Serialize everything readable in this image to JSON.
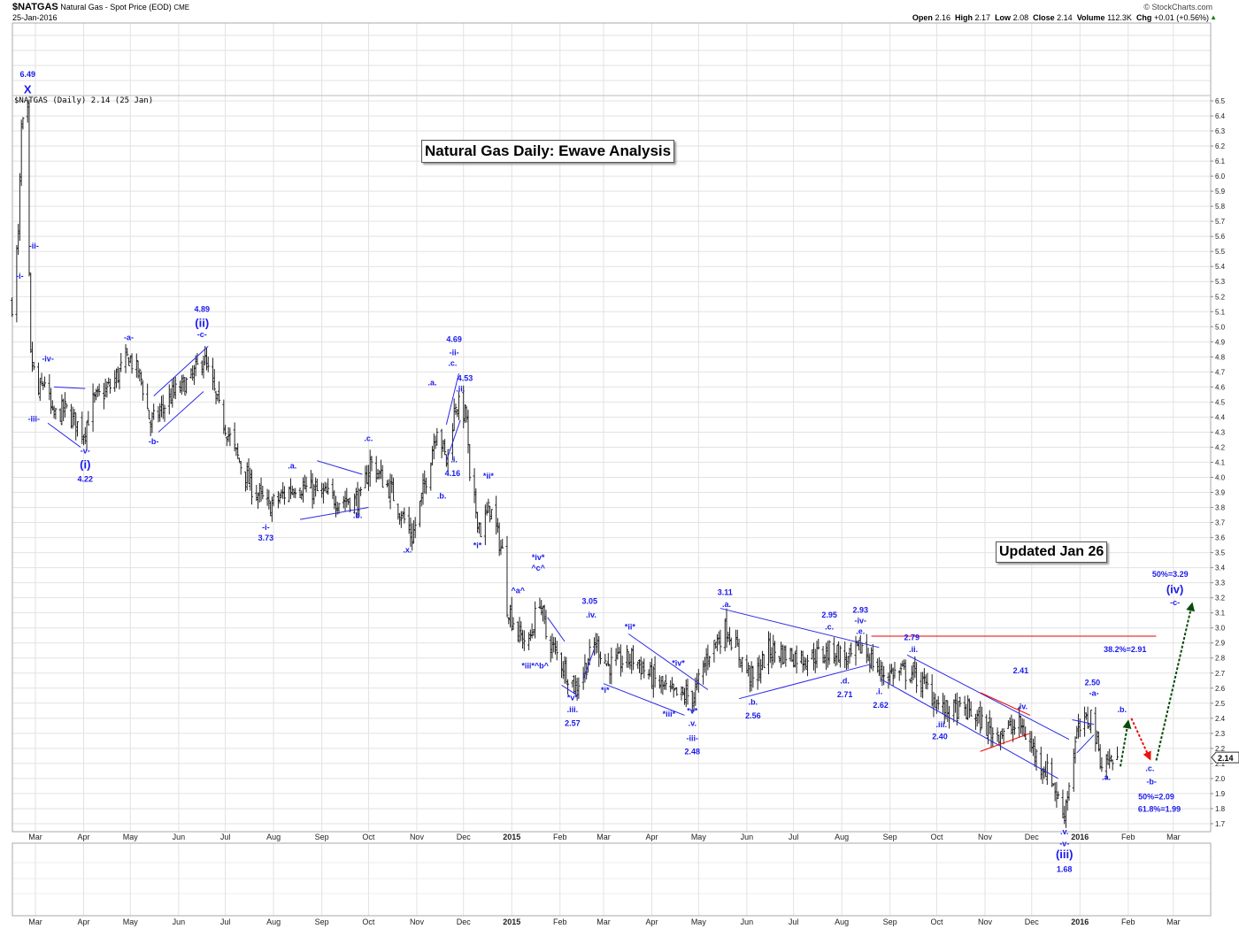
{
  "header": {
    "symbol": "$NATGAS",
    "description": "Natural Gas - Spot Price (EOD)",
    "exchange": "CME",
    "date": "25-Jan-2016",
    "copyright": "© StockCharts.com",
    "quote": {
      "open_label": "Open",
      "open": "2.16",
      "high_label": "High",
      "high": "2.17",
      "low_label": "Low",
      "low": "2.08",
      "close_label": "Close",
      "close": "2.14",
      "volume_label": "Volume",
      "volume": "112.3K",
      "chg_label": "Chg",
      "chg": "+0.01 (+0.56%)"
    },
    "chg_icon": "up-triangle-icon",
    "legend": "$NATGAS (Daily) 2.14 (25 Jan)"
  },
  "annotations": {
    "title_box": "Natural Gas Daily: Ewave Analysis",
    "updated_box": "Updated Jan 26"
  },
  "colors": {
    "bars": "#222222",
    "wave_labels": "#1a1aee",
    "trendlines": "#2a2ae8",
    "resistance": "#ee0000",
    "arrow_up": "#0a4a0a",
    "arrow_down": "#ee1111",
    "grid": "#e2e2e2"
  },
  "chart_data": {
    "type": "ohlc-bar",
    "ylim": [
      1.7,
      6.5
    ],
    "y_ticks": [
      "6.5",
      "6.4",
      "6.3",
      "6.2",
      "6.1",
      "6.0",
      "5.9",
      "5.8",
      "5.7",
      "5.6",
      "5.5",
      "5.4",
      "5.3",
      "5.2",
      "5.1",
      "5.0",
      "4.9",
      "4.8",
      "4.7",
      "4.6",
      "4.5",
      "4.4",
      "4.3",
      "4.2",
      "4.1",
      "4.0",
      "3.9",
      "3.8",
      "3.7",
      "3.6",
      "3.5",
      "3.4",
      "3.3",
      "3.2",
      "3.1",
      "3.0",
      "2.9",
      "2.8",
      "2.7",
      "2.6",
      "2.5",
      "2.4",
      "2.3",
      "2.2",
      "2.1",
      "2.0",
      "1.9",
      "1.8",
      "1.7"
    ],
    "x_ticks": [
      {
        "label": "Mar",
        "date": "2014-03-01"
      },
      {
        "label": "Apr",
        "date": "2014-04-01"
      },
      {
        "label": "May",
        "date": "2014-05-01"
      },
      {
        "label": "Jun",
        "date": "2014-06-01"
      },
      {
        "label": "Jul",
        "date": "2014-07-01"
      },
      {
        "label": "Aug",
        "date": "2014-08-01"
      },
      {
        "label": "Sep",
        "date": "2014-09-01"
      },
      {
        "label": "Oct",
        "date": "2014-10-01"
      },
      {
        "label": "Nov",
        "date": "2014-11-01"
      },
      {
        "label": "Dec",
        "date": "2014-12-01"
      },
      {
        "label": "2015",
        "date": "2015-01-01",
        "bold": true
      },
      {
        "label": "Feb",
        "date": "2015-02-01"
      },
      {
        "label": "Mar",
        "date": "2015-03-01"
      },
      {
        "label": "Apr",
        "date": "2015-04-01"
      },
      {
        "label": "May",
        "date": "2015-05-01"
      },
      {
        "label": "Jun",
        "date": "2015-06-01"
      },
      {
        "label": "Jul",
        "date": "2015-07-01"
      },
      {
        "label": "Aug",
        "date": "2015-08-01"
      },
      {
        "label": "Sep",
        "date": "2015-09-01"
      },
      {
        "label": "Oct",
        "date": "2015-10-01"
      },
      {
        "label": "Nov",
        "date": "2015-11-01"
      },
      {
        "label": "Dec",
        "date": "2015-12-01"
      },
      {
        "label": "2016",
        "date": "2016-01-01",
        "bold": true
      },
      {
        "label": "Feb",
        "date": "2016-02-01"
      },
      {
        "label": "Mar",
        "date": "2016-03-01"
      }
    ],
    "last_price": "2.14",
    "close_path": [
      [
        "2014-02-14",
        5.15
      ],
      [
        "2014-02-18",
        5.6
      ],
      [
        "2014-02-20",
        6.3
      ],
      [
        "2014-02-24",
        6.4
      ],
      [
        "2014-02-25",
        5.3
      ],
      [
        "2014-02-26",
        4.8
      ],
      [
        "2014-03-03",
        4.55
      ],
      [
        "2014-03-07",
        4.65
      ],
      [
        "2014-03-12",
        4.4
      ],
      [
        "2014-03-20",
        4.45
      ],
      [
        "2014-04-01",
        4.3
      ],
      [
        "2014-04-07",
        4.5
      ],
      [
        "2014-04-18",
        4.6
      ],
      [
        "2014-04-30",
        4.8
      ],
      [
        "2014-05-08",
        4.65
      ],
      [
        "2014-05-14",
        4.35
      ],
      [
        "2014-05-28",
        4.55
      ],
      [
        "2014-06-09",
        4.65
      ],
      [
        "2014-06-17",
        4.8
      ],
      [
        "2014-06-27",
        4.45
      ],
      [
        "2014-07-08",
        4.15
      ],
      [
        "2014-07-17",
        3.95
      ],
      [
        "2014-07-29",
        3.8
      ],
      [
        "2014-08-15",
        3.95
      ],
      [
        "2014-08-29",
        3.9
      ],
      [
        "2014-09-12",
        3.85
      ],
      [
        "2014-09-26",
        3.85
      ],
      [
        "2014-10-02",
        4.1
      ],
      [
        "2014-10-16",
        3.9
      ],
      [
        "2014-10-29",
        3.6
      ],
      [
        "2014-11-05",
        3.9
      ],
      [
        "2014-11-14",
        4.35
      ],
      [
        "2014-11-20",
        4.1
      ],
      [
        "2014-11-26",
        4.5
      ],
      [
        "2014-12-03",
        4.4
      ],
      [
        "2014-12-05",
        3.95
      ],
      [
        "2014-12-12",
        3.65
      ],
      [
        "2014-12-18",
        3.8
      ],
      [
        "2014-12-26",
        3.5
      ],
      [
        "2014-12-29",
        3.15
      ],
      [
        "2015-01-06",
        2.95
      ],
      [
        "2015-01-12",
        2.9
      ],
      [
        "2015-01-19",
        3.2
      ],
      [
        "2015-01-23",
        2.95
      ],
      [
        "2015-02-03",
        2.75
      ],
      [
        "2015-02-11",
        2.6
      ],
      [
        "2015-02-24",
        2.9
      ],
      [
        "2015-03-04",
        2.75
      ],
      [
        "2015-03-20",
        2.8
      ],
      [
        "2015-04-03",
        2.65
      ],
      [
        "2015-04-14",
        2.55
      ],
      [
        "2015-04-28",
        2.55
      ],
      [
        "2015-05-08",
        2.85
      ],
      [
        "2015-05-19",
        3.0
      ],
      [
        "2015-05-28",
        2.8
      ],
      [
        "2015-06-05",
        2.65
      ],
      [
        "2015-06-15",
        2.85
      ],
      [
        "2015-07-08",
        2.8
      ],
      [
        "2015-07-28",
        2.85
      ],
      [
        "2015-08-05",
        2.78
      ],
      [
        "2015-08-14",
        2.88
      ],
      [
        "2015-08-26",
        2.7
      ],
      [
        "2015-09-15",
        2.7
      ],
      [
        "2015-09-25",
        2.6
      ],
      [
        "2015-10-05",
        2.45
      ],
      [
        "2015-10-22",
        2.45
      ],
      [
        "2015-11-06",
        2.3
      ],
      [
        "2015-11-24",
        2.35
      ],
      [
        "2015-12-04",
        2.15
      ],
      [
        "2015-12-14",
        2.0
      ],
      [
        "2015-12-21",
        1.75
      ],
      [
        "2015-12-24",
        1.9
      ],
      [
        "2015-12-30",
        2.3
      ],
      [
        "2016-01-08",
        2.42
      ],
      [
        "2016-01-15",
        2.1
      ],
      [
        "2016-01-25",
        2.14
      ]
    ],
    "wave_labels": [
      {
        "text": "6.49",
        "date": "2014-02-24",
        "price": 6.66
      },
      {
        "text": "X",
        "date": "2014-02-24",
        "price": 6.55
      },
      {
        "text": "-ii-",
        "date": "2014-02-28",
        "price": 5.52
      },
      {
        "text": "-i-",
        "date": "2014-02-19",
        "price": 5.32
      },
      {
        "text": "-iv-",
        "date": "2014-03-09",
        "price": 4.77
      },
      {
        "text": "-iii-",
        "date": "2014-02-28",
        "price": 4.37
      },
      {
        "text": "-v-",
        "date": "2014-04-02",
        "price": 4.16
      },
      {
        "text": "(i)",
        "date": "2014-04-02",
        "price": 4.06
      },
      {
        "text": "4.22",
        "date": "2014-04-02",
        "price": 3.97
      },
      {
        "text": "-a-",
        "date": "2014-04-30",
        "price": 4.91
      },
      {
        "text": "-b-",
        "date": "2014-05-16",
        "price": 4.22
      },
      {
        "text": "4.89",
        "date": "2014-06-16",
        "price": 5.1
      },
      {
        "text": "(ii)",
        "date": "2014-06-16",
        "price": 5.0
      },
      {
        "text": "-c-",
        "date": "2014-06-16",
        "price": 4.93
      },
      {
        "text": "-i-",
        "date": "2014-07-27",
        "price": 3.65
      },
      {
        "text": "3.73",
        "date": "2014-07-27",
        "price": 3.58
      },
      {
        "text": ".a.",
        "date": "2014-08-13",
        "price": 4.06
      },
      {
        "text": ".b.",
        "date": "2014-09-24",
        "price": 3.73
      },
      {
        "text": ".c.",
        "date": "2014-10-01",
        "price": 4.24
      },
      {
        "text": ".x.",
        "date": "2014-10-26",
        "price": 3.5
      },
      {
        "text": "4.69",
        "date": "2014-11-25",
        "price": 4.9
      },
      {
        "text": "-ii-",
        "date": "2014-11-25",
        "price": 4.81
      },
      {
        "text": ".c.",
        "date": "2014-11-24",
        "price": 4.74
      },
      {
        "text": "4.53",
        "date": "2014-12-02",
        "price": 4.64
      },
      {
        "text": ".ii.",
        "date": "2014-11-29",
        "price": 4.57
      },
      {
        "text": ".i.",
        "date": "2014-11-25",
        "price": 4.1
      },
      {
        "text": "4.16",
        "date": "2014-11-24",
        "price": 4.01
      },
      {
        "text": ".a.",
        "date": "2014-11-11",
        "price": 4.61
      },
      {
        "text": ".b.",
        "date": "2014-11-17",
        "price": 3.86
      },
      {
        "text": "*ii*",
        "date": "2014-12-17",
        "price": 3.99
      },
      {
        "text": "*i*",
        "date": "2014-12-10",
        "price": 3.53
      },
      {
        "text": "*iv*",
        "date": "2015-01-18",
        "price": 3.45
      },
      {
        "text": "^c^",
        "date": "2015-01-18",
        "price": 3.38
      },
      {
        "text": "^a^",
        "date": "2015-01-05",
        "price": 3.23
      },
      {
        "text": "*iii*^b^",
        "date": "2015-01-16",
        "price": 2.73
      },
      {
        "text": "*v*",
        "date": "2015-02-09",
        "price": 2.52
      },
      {
        "text": ".iii.",
        "date": "2015-02-09",
        "price": 2.44
      },
      {
        "text": "2.57",
        "date": "2015-02-09",
        "price": 2.35
      },
      {
        "text": "3.05",
        "date": "2015-02-20",
        "price": 3.16
      },
      {
        "text": ".iv.",
        "date": "2015-02-21",
        "price": 3.07
      },
      {
        "text": "*ii*",
        "date": "2015-03-18",
        "price": 2.99
      },
      {
        "text": "*i*",
        "date": "2015-03-02",
        "price": 2.57
      },
      {
        "text": "*iv*",
        "date": "2015-04-18",
        "price": 2.75
      },
      {
        "text": "*iii*",
        "date": "2015-04-12",
        "price": 2.41
      },
      {
        "text": "*v*",
        "date": "2015-04-27",
        "price": 2.43
      },
      {
        "text": ".v.",
        "date": "2015-04-27",
        "price": 2.35
      },
      {
        "text": "-iii-",
        "date": "2015-04-27",
        "price": 2.25
      },
      {
        "text": "2.48",
        "date": "2015-04-27",
        "price": 2.16
      },
      {
        "text": "3.11",
        "date": "2015-05-18",
        "price": 3.22
      },
      {
        "text": ".a.",
        "date": "2015-05-19",
        "price": 3.14
      },
      {
        "text": ".b.",
        "date": "2015-06-05",
        "price": 2.49
      },
      {
        "text": "2.56",
        "date": "2015-06-05",
        "price": 2.4
      },
      {
        "text": "2.95",
        "date": "2015-07-24",
        "price": 3.07
      },
      {
        "text": ".c.",
        "date": "2015-07-24",
        "price": 2.99
      },
      {
        "text": "2.93",
        "date": "2015-08-13",
        "price": 3.1
      },
      {
        "text": "-iv-",
        "date": "2015-08-13",
        "price": 3.03
      },
      {
        "text": ".e.",
        "date": "2015-08-13",
        "price": 2.96
      },
      {
        "text": ".d.",
        "date": "2015-08-03",
        "price": 2.63
      },
      {
        "text": "2.71",
        "date": "2015-08-03",
        "price": 2.54
      },
      {
        "text": ".i.",
        "date": "2015-08-25",
        "price": 2.56
      },
      {
        "text": "2.62",
        "date": "2015-08-26",
        "price": 2.47
      },
      {
        "text": "2.79",
        "date": "2015-09-15",
        "price": 2.92
      },
      {
        "text": ".ii.",
        "date": "2015-09-16",
        "price": 2.84
      },
      {
        "text": ".iii.",
        "date": "2015-10-04",
        "price": 2.34
      },
      {
        "text": "2.40",
        "date": "2015-10-03",
        "price": 2.26
      },
      {
        "text": "2.41",
        "date": "2015-11-24",
        "price": 2.7
      },
      {
        "text": ".iv.",
        "date": "2015-11-25",
        "price": 2.46
      },
      {
        "text": ".v.",
        "date": "2015-12-22",
        "price": 1.63
      },
      {
        "text": "-v-",
        "date": "2015-12-22",
        "price": 1.55
      },
      {
        "text": "(iii)",
        "date": "2015-12-22",
        "price": 1.47
      },
      {
        "text": "1.68",
        "date": "2015-12-22",
        "price": 1.38
      },
      {
        "text": "2.50",
        "date": "2016-01-09",
        "price": 2.62
      },
      {
        "text": "-a-",
        "date": "2016-01-10",
        "price": 2.55
      },
      {
        "text": ".a.",
        "date": "2016-01-18",
        "price": 1.99
      },
      {
        "text": ".b.",
        "date": "2016-01-28",
        "price": 2.44
      },
      {
        "text": ".c.",
        "date": "2016-02-15",
        "price": 2.05
      },
      {
        "text": "-b-",
        "date": "2016-02-16",
        "price": 1.96
      },
      {
        "text": "50%=2.09",
        "date": "2016-02-19",
        "price": 1.86
      },
      {
        "text": "61.8%=1.99",
        "date": "2016-02-21",
        "price": 1.78
      },
      {
        "text": "38.2%=2.91",
        "date": "2016-01-30",
        "price": 2.84
      },
      {
        "text": "50%=3.29",
        "date": "2016-02-28",
        "price": 3.34
      },
      {
        "text": "(iv)",
        "date": "2016-03-02",
        "price": 3.23
      },
      {
        "text": "-c-",
        "date": "2016-03-02",
        "price": 3.15
      }
    ],
    "trendlines": [
      {
        "color": "blue",
        "from": [
          "2014-03-13",
          4.6
        ],
        "to": [
          "2014-04-02",
          4.59
        ]
      },
      {
        "color": "blue",
        "from": [
          "2014-03-09",
          4.36
        ],
        "to": [
          "2014-03-30",
          4.2
        ]
      },
      {
        "color": "blue",
        "from": [
          "2014-05-16",
          4.54
        ],
        "to": [
          "2014-06-20",
          4.87
        ]
      },
      {
        "color": "blue",
        "from": [
          "2014-05-19",
          4.3
        ],
        "to": [
          "2014-06-17",
          4.57
        ]
      },
      {
        "color": "blue",
        "from": [
          "2014-08-29",
          4.11
        ],
        "to": [
          "2014-09-27",
          4.02
        ]
      },
      {
        "color": "blue",
        "from": [
          "2014-08-18",
          3.72
        ],
        "to": [
          "2014-10-01",
          3.8
        ]
      },
      {
        "color": "blue",
        "from": [
          "2014-11-20",
          4.35
        ],
        "to": [
          "2014-11-28",
          4.69
        ]
      },
      {
        "color": "blue",
        "from": [
          "2014-11-20",
          4.11
        ],
        "to": [
          "2014-11-29",
          4.38
        ]
      },
      {
        "color": "blue",
        "from": [
          "2015-01-24",
          3.07
        ],
        "to": [
          "2015-02-04",
          2.91
        ]
      },
      {
        "color": "blue",
        "from": [
          "2015-02-02",
          2.62
        ],
        "to": [
          "2015-02-11",
          2.56
        ]
      },
      {
        "color": "blue",
        "from": [
          "2015-02-16",
          2.66
        ],
        "to": [
          "2015-02-23",
          2.86
        ]
      },
      {
        "color": "blue",
        "from": [
          "2015-03-17",
          2.96
        ],
        "to": [
          "2015-05-07",
          2.59
        ]
      },
      {
        "color": "blue",
        "from": [
          "2015-03-01",
          2.63
        ],
        "to": [
          "2015-04-22",
          2.42
        ]
      },
      {
        "color": "blue",
        "from": [
          "2015-05-15",
          3.13
        ],
        "to": [
          "2015-08-25",
          2.87
        ]
      },
      {
        "color": "blue",
        "from": [
          "2015-05-27",
          2.53
        ],
        "to": [
          "2015-08-20",
          2.76
        ]
      },
      {
        "color": "blue",
        "from": [
          "2015-09-12",
          2.82
        ],
        "to": [
          "2015-12-25",
          2.26
        ]
      },
      {
        "color": "blue",
        "from": [
          "2015-08-26",
          2.66
        ],
        "to": [
          "2015-12-18",
          2.0
        ]
      },
      {
        "color": "red",
        "from": [
          "2015-10-29",
          2.57
        ],
        "to": [
          "2015-11-30",
          2.42
        ]
      },
      {
        "color": "red",
        "from": [
          "2015-10-29",
          2.18
        ],
        "to": [
          "2015-11-30",
          2.3
        ]
      },
      {
        "color": "blue",
        "from": [
          "2015-12-27",
          2.39
        ],
        "to": [
          "2016-01-10",
          2.36
        ]
      },
      {
        "color": "blue",
        "from": [
          "2015-12-30",
          2.17
        ],
        "to": [
          "2016-01-10",
          2.29
        ]
      },
      {
        "color": "red",
        "from": [
          "2015-08-20",
          2.945
        ],
        "to": [
          "2016-02-19",
          2.945
        ]
      }
    ],
    "projection_arrows": [
      {
        "color": "green",
        "from": [
          "2016-01-27",
          2.08
        ],
        "to": [
          "2016-02-01",
          2.38
        ]
      },
      {
        "color": "red",
        "from": [
          "2016-02-03",
          2.4
        ],
        "to": [
          "2016-02-15",
          2.13
        ]
      },
      {
        "color": "green",
        "from": [
          "2016-02-19",
          2.12
        ],
        "to": [
          "2016-03-13",
          3.16
        ]
      }
    ]
  }
}
